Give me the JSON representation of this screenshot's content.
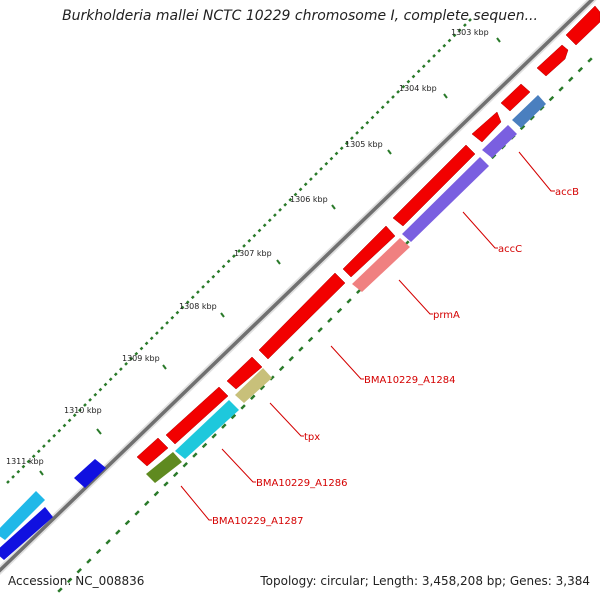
{
  "title": "Burkholderia mallei NCTC 10229 chromosome I, complete sequen...",
  "footer": {
    "accession": "Accession: NC_008836",
    "summary": "Topology: circular; Length: 3,458,208 bp; Genes: 3,384"
  },
  "ticks": [
    "1303 kbp",
    "1304 kbp",
    "1305 kbp",
    "1306 kbp",
    "1307 kbp",
    "1308 kbp",
    "1309 kbp",
    "1310 kbp",
    "1311 kbp"
  ],
  "genes": [
    "accB",
    "accC",
    "prmA",
    "BMA10229_A1284",
    "tpx",
    "BMA10229_A1286",
    "BMA10229_A1287"
  ],
  "colors": {
    "backbone": "#777777",
    "tick": "#2a7a2a",
    "label": "#d40000",
    "red": "#f20000",
    "purple": "#7a5fe0",
    "steelblue": "#4a7fbf",
    "salmon": "#f08080",
    "khaki": "#c8c07a",
    "cyan": "#1ec8dc",
    "olive": "#5f8a20",
    "blue": "#1010e0",
    "skyblue": "#20b8e8"
  }
}
